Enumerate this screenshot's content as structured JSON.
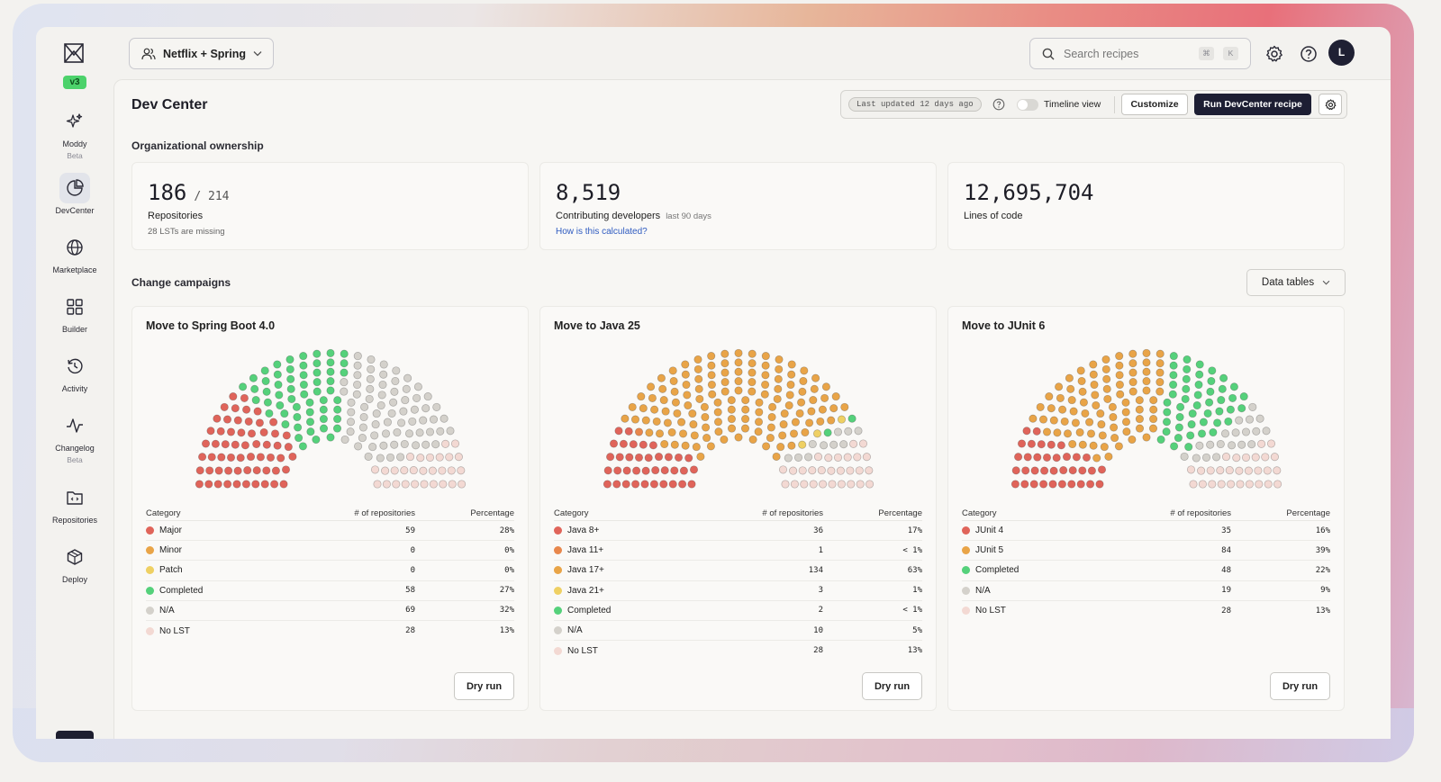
{
  "app": {
    "version_badge": "v3"
  },
  "sidebar": {
    "items": [
      {
        "label": "Moddy",
        "sub": "Beta"
      },
      {
        "label": "DevCenter",
        "sub": ""
      },
      {
        "label": "Marketplace",
        "sub": ""
      },
      {
        "label": "Builder",
        "sub": ""
      },
      {
        "label": "Activity",
        "sub": ""
      },
      {
        "label": "Changelog",
        "sub": "Beta"
      },
      {
        "label": "Repositories",
        "sub": ""
      },
      {
        "label": "Deploy",
        "sub": ""
      }
    ]
  },
  "header": {
    "org_select": "Netflix + Spring",
    "search_placeholder": "Search recipes",
    "shortcut_keys": [
      "⌘",
      "K"
    ],
    "avatar_initial": "L"
  },
  "page": {
    "title": "Dev Center",
    "last_updated": "Last updated 12 days ago",
    "timeline_label": "Timeline view",
    "timeline_on": false,
    "customize_label": "Customize",
    "run_label": "Run DevCenter recipe"
  },
  "ownership": {
    "section_title": "Organizational ownership",
    "repos": {
      "value": "186",
      "total": "/ 214",
      "label": "Repositories",
      "sub": "28 LSTs are missing"
    },
    "developers": {
      "value": "8,519",
      "label": "Contributing developers",
      "period": "last 90 days",
      "link": "How is this calculated?"
    },
    "loc": {
      "value": "12,695,704",
      "label": "Lines of code"
    }
  },
  "campaigns": {
    "section_title": "Change campaigns",
    "data_tables_label": "Data tables",
    "table_headers": {
      "category": "Category",
      "count": "# of repositories",
      "percentage": "Percentage"
    },
    "dry_run_label": "Dry run",
    "colors": {
      "red": "#e0645a",
      "orange": "#e9a447",
      "yellow": "#efd063",
      "green": "#55d17b",
      "gray": "#d4d1cb",
      "pink": "#f3d9d3"
    },
    "items": [
      {
        "title": "Move to Spring Boot 4.0",
        "rows": [
          {
            "category": "Major",
            "count": "59",
            "pct": "28%",
            "color": "#e0645a"
          },
          {
            "category": "Minor",
            "count": "0",
            "pct": "0%",
            "color": "#e9a447"
          },
          {
            "category": "Patch",
            "count": "0",
            "pct": "0%",
            "color": "#efd063"
          },
          {
            "category": "Completed",
            "count": "58",
            "pct": "27%",
            "color": "#55d17b"
          },
          {
            "category": "N/A",
            "count": "69",
            "pct": "32%",
            "color": "#d4d1cb"
          },
          {
            "category": "No LST",
            "count": "28",
            "pct": "13%",
            "color": "#f3d9d3"
          }
        ]
      },
      {
        "title": "Move to Java 25",
        "rows": [
          {
            "category": "Java 8+",
            "count": "36",
            "pct": "17%",
            "color": "#e0645a"
          },
          {
            "category": "Java 11+",
            "count": "1",
            "pct": "< 1%",
            "color": "#e8874c"
          },
          {
            "category": "Java 17+",
            "count": "134",
            "pct": "63%",
            "color": "#e9a447"
          },
          {
            "category": "Java 21+",
            "count": "3",
            "pct": "1%",
            "color": "#efd063"
          },
          {
            "category": "Completed",
            "count": "2",
            "pct": "< 1%",
            "color": "#55d17b"
          },
          {
            "category": "N/A",
            "count": "10",
            "pct": "5%",
            "color": "#d4d1cb"
          },
          {
            "category": "No LST",
            "count": "28",
            "pct": "13%",
            "color": "#f3d9d3"
          }
        ]
      },
      {
        "title": "Move to JUnit 6",
        "rows": [
          {
            "category": "JUnit 4",
            "count": "35",
            "pct": "16%",
            "color": "#e0645a"
          },
          {
            "category": "JUnit 5",
            "count": "84",
            "pct": "39%",
            "color": "#e9a447"
          },
          {
            "category": "Completed",
            "count": "48",
            "pct": "22%",
            "color": "#55d17b"
          },
          {
            "category": "N/A",
            "count": "19",
            "pct": "9%",
            "color": "#d4d1cb"
          },
          {
            "category": "No LST",
            "count": "28",
            "pct": "13%",
            "color": "#f3d9d3"
          }
        ]
      }
    ]
  }
}
